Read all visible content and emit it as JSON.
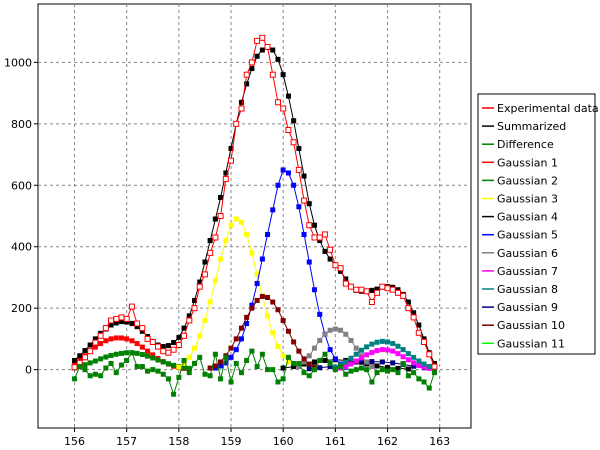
{
  "chart_data": {
    "type": "line",
    "title": "",
    "xlabel": "",
    "ylabel": "",
    "xlim": [
      155.3,
      163.6
    ],
    "ylim": [
      -190,
      1190
    ],
    "xticks": [
      "156",
      "157",
      "158",
      "159",
      "160",
      "161",
      "162",
      "163"
    ],
    "yticks": [
      "0",
      "200",
      "400",
      "600",
      "800",
      "1000"
    ],
    "grid": true,
    "legend_position": "right",
    "series": [
      {
        "name": "Experimental data",
        "color": "#ff0000",
        "marker": "open-square",
        "x": [
          156.0,
          156.1,
          156.2,
          156.3,
          156.4,
          156.5,
          156.6,
          156.7,
          156.8,
          156.9,
          157.0,
          157.1,
          157.2,
          157.3,
          157.4,
          157.5,
          157.6,
          157.7,
          157.8,
          157.9,
          158.0,
          158.1,
          158.2,
          158.3,
          158.4,
          158.5,
          158.6,
          158.7,
          158.8,
          158.9,
          159.0,
          159.1,
          159.2,
          159.3,
          159.4,
          159.5,
          159.6,
          159.7,
          159.8,
          159.9,
          160.0,
          160.1,
          160.2,
          160.3,
          160.4,
          160.5,
          160.6,
          160.7,
          160.8,
          160.9,
          161.0,
          161.1,
          161.2,
          161.3,
          161.4,
          161.5,
          161.6,
          161.7,
          161.8,
          161.9,
          162.0,
          162.1,
          162.2,
          162.3,
          162.4,
          162.5,
          162.6,
          162.7,
          162.8,
          162.9
        ],
        "y": [
          8,
          22,
          40,
          60,
          88,
          110,
          135,
          160,
          165,
          170,
          165,
          205,
          150,
          135,
          100,
          90,
          75,
          60,
          55,
          65,
          80,
          110,
          160,
          200,
          270,
          310,
          380,
          430,
          500,
          620,
          680,
          800,
          850,
          960,
          1000,
          1070,
          1080,
          1050,
          960,
          870,
          850,
          780,
          740,
          650,
          550,
          470,
          430,
          430,
          440,
          390,
          340,
          330,
          280,
          270,
          260,
          260,
          255,
          220,
          250,
          270,
          265,
          260,
          250,
          240,
          200,
          170,
          120,
          90,
          50,
          10
        ]
      },
      {
        "name": "Summarized",
        "color": "#000000",
        "marker": "square",
        "x": [
          156.0,
          156.1,
          156.2,
          156.3,
          156.4,
          156.5,
          156.6,
          156.7,
          156.8,
          156.9,
          157.0,
          157.1,
          157.2,
          157.3,
          157.4,
          157.5,
          157.6,
          157.7,
          157.8,
          157.9,
          158.0,
          158.1,
          158.2,
          158.3,
          158.4,
          158.5,
          158.6,
          158.7,
          158.8,
          158.9,
          159.0,
          159.1,
          159.2,
          159.3,
          159.4,
          159.5,
          159.6,
          159.7,
          159.8,
          159.9,
          160.0,
          160.1,
          160.2,
          160.3,
          160.4,
          160.5,
          160.6,
          160.7,
          160.8,
          160.9,
          161.0,
          161.1,
          161.2,
          161.3,
          161.4,
          161.5,
          161.6,
          161.7,
          161.8,
          161.9,
          162.0,
          162.1,
          162.2,
          162.3,
          162.4,
          162.5,
          162.6,
          162.7,
          162.8,
          162.9
        ],
        "y": [
          30,
          45,
          62,
          80,
          100,
          118,
          132,
          145,
          152,
          156,
          155,
          150,
          140,
          125,
          108,
          92,
          80,
          75,
          78,
          88,
          105,
          135,
          175,
          225,
          285,
          350,
          420,
          490,
          560,
          640,
          720,
          800,
          870,
          930,
          980,
          1020,
          1040,
          1050,
          1040,
          1010,
          960,
          890,
          810,
          720,
          630,
          540,
          470,
          420,
          385,
          360,
          340,
          320,
          295,
          270,
          258,
          255,
          255,
          258,
          262,
          268,
          270,
          268,
          260,
          245,
          220,
          185,
          145,
          100,
          55,
          20
        ]
      },
      {
        "name": "Difference",
        "color": "#008000",
        "marker": "square",
        "x": [
          156.0,
          156.1,
          156.2,
          156.3,
          156.4,
          156.5,
          156.6,
          156.7,
          156.8,
          156.9,
          157.0,
          157.1,
          157.2,
          157.3,
          157.4,
          157.5,
          157.6,
          157.7,
          157.8,
          157.9,
          158.0,
          158.1,
          158.2,
          158.3,
          158.4,
          158.5,
          158.6,
          158.7,
          158.8,
          158.9,
          159.0,
          159.1,
          159.2,
          159.3,
          159.4,
          159.5,
          159.6,
          159.7,
          159.8,
          159.9,
          160.0,
          160.1,
          160.2,
          160.3,
          160.4,
          160.5,
          160.6,
          160.7,
          160.8,
          160.9,
          161.0,
          161.1,
          161.2,
          161.3,
          161.4,
          161.5,
          161.6,
          161.7,
          161.8,
          161.9,
          162.0,
          162.1,
          162.2,
          162.3,
          162.4,
          162.5,
          162.6,
          162.7,
          162.8,
          162.9
        ],
        "y": [
          -30,
          10,
          0,
          -20,
          -15,
          -20,
          5,
          20,
          -10,
          15,
          30,
          55,
          10,
          10,
          -5,
          0,
          -5,
          -15,
          -30,
          -80,
          -25,
          30,
          -10,
          20,
          40,
          -15,
          -20,
          50,
          -30,
          40,
          -40,
          20,
          -10,
          30,
          60,
          10,
          50,
          0,
          0,
          -40,
          -30,
          40,
          20,
          20,
          -10,
          -20,
          0,
          30,
          50,
          20,
          0,
          10,
          -15,
          -5,
          0,
          5,
          0,
          -40,
          -10,
          0,
          -5,
          0,
          -10,
          20,
          -20,
          -10,
          -30,
          -40,
          -60,
          -10
        ]
      },
      {
        "name": "Gaussian 1",
        "color": "#ff0000",
        "marker": "square",
        "x": [
          156.0,
          156.1,
          156.2,
          156.3,
          156.4,
          156.5,
          156.6,
          156.7,
          156.8,
          156.9,
          157.0,
          157.1,
          157.2,
          157.3,
          157.4,
          157.5,
          157.6,
          157.7,
          157.8,
          157.9,
          158.0,
          158.1,
          158.2
        ],
        "y": [
          20,
          32,
          45,
          60,
          73,
          85,
          94,
          100,
          103,
          103,
          100,
          94,
          85,
          73,
          60,
          48,
          36,
          26,
          18,
          11,
          7,
          4,
          2
        ]
      },
      {
        "name": "Gaussian 2",
        "color": "#008000",
        "marker": "square",
        "x": [
          156.0,
          156.1,
          156.2,
          156.3,
          156.4,
          156.5,
          156.6,
          156.7,
          156.8,
          156.9,
          157.0,
          157.1,
          157.2,
          157.3,
          157.4,
          157.5,
          157.6,
          157.7,
          157.8,
          157.9,
          158.0,
          158.1,
          158.2
        ],
        "y": [
          5,
          10,
          16,
          22,
          28,
          35,
          41,
          46,
          50,
          53,
          55,
          55,
          53,
          49,
          44,
          38,
          31,
          25,
          19,
          14,
          10,
          6,
          4
        ]
      },
      {
        "name": "Gaussian 3",
        "color": "#ffff00",
        "marker": "square",
        "x": [
          158.0,
          158.1,
          158.2,
          158.3,
          158.4,
          158.5,
          158.6,
          158.7,
          158.8,
          158.9,
          159.0,
          159.1,
          159.2,
          159.3,
          159.4,
          159.5,
          159.6,
          159.7,
          159.8,
          159.9,
          160.0,
          160.1,
          160.2
        ],
        "y": [
          8,
          20,
          40,
          70,
          110,
          160,
          220,
          290,
          360,
          420,
          470,
          490,
          480,
          440,
          380,
          310,
          240,
          175,
          120,
          75,
          45,
          25,
          12
        ]
      },
      {
        "name": "Gaussian 4",
        "color": "#000000",
        "marker": "square",
        "x": [
          160.0,
          160.2,
          160.4,
          160.6,
          160.8,
          161.0,
          161.2,
          161.4,
          161.6,
          161.8,
          162.0,
          162.2,
          162.4
        ],
        "y": [
          5,
          10,
          18,
          25,
          30,
          32,
          30,
          25,
          18,
          12,
          7,
          4,
          2
        ]
      },
      {
        "name": "Gaussian 5",
        "color": "#0000ff",
        "marker": "square",
        "x": [
          158.7,
          158.8,
          158.9,
          159.0,
          159.1,
          159.2,
          159.3,
          159.4,
          159.5,
          159.6,
          159.7,
          159.8,
          159.9,
          160.0,
          160.1,
          160.2,
          160.3,
          160.4,
          160.5,
          160.6,
          160.7,
          160.8,
          160.9,
          161.0,
          161.1,
          161.2
        ],
        "y": [
          5,
          12,
          22,
          40,
          65,
          100,
          150,
          210,
          280,
          360,
          440,
          520,
          600,
          650,
          640,
          600,
          530,
          440,
          350,
          260,
          180,
          115,
          65,
          35,
          18,
          8
        ]
      },
      {
        "name": "Gaussian 6",
        "color": "#808080",
        "marker": "square",
        "x": [
          160.3,
          160.4,
          160.5,
          160.6,
          160.7,
          160.8,
          160.9,
          161.0,
          161.1,
          161.2,
          161.3,
          161.4,
          161.5,
          161.6,
          161.7
        ],
        "y": [
          10,
          25,
          45,
          70,
          95,
          115,
          128,
          132,
          128,
          115,
          95,
          70,
          45,
          25,
          10
        ]
      },
      {
        "name": "Gaussian 7",
        "color": "#ff00ff",
        "marker": "square",
        "x": [
          161.1,
          161.2,
          161.3,
          161.4,
          161.5,
          161.6,
          161.7,
          161.8,
          161.9,
          162.0,
          162.1,
          162.2,
          162.3,
          162.4,
          162.5,
          162.6,
          162.7,
          162.8,
          162.9
        ],
        "y": [
          5,
          10,
          18,
          28,
          38,
          48,
          56,
          62,
          65,
          64,
          60,
          52,
          42,
          32,
          22,
          14,
          8,
          4,
          2
        ]
      },
      {
        "name": "Gaussian 8",
        "color": "#008080",
        "marker": "square",
        "x": [
          161.0,
          161.1,
          161.2,
          161.3,
          161.4,
          161.5,
          161.6,
          161.7,
          161.8,
          161.9,
          162.0,
          162.1,
          162.2,
          162.3,
          162.4,
          162.5,
          162.6,
          162.7,
          162.8,
          162.9
        ],
        "y": [
          8,
          15,
          25,
          37,
          50,
          63,
          74,
          83,
          89,
          92,
          90,
          85,
          76,
          65,
          52,
          40,
          28,
          18,
          10,
          5
        ]
      },
      {
        "name": "Gaussian 9",
        "color": "#000080",
        "marker": "square",
        "x": [
          160.5,
          160.7,
          160.9,
          161.1,
          161.3,
          161.5,
          161.7,
          161.9,
          162.1,
          162.3,
          162.5,
          162.7
        ],
        "y": [
          3,
          6,
          10,
          15,
          20,
          24,
          26,
          25,
          22,
          17,
          11,
          6
        ]
      },
      {
        "name": "Gaussian 10",
        "color": "#800000",
        "marker": "square",
        "x": [
          158.6,
          158.7,
          158.8,
          158.9,
          159.0,
          159.1,
          159.2,
          159.3,
          159.4,
          159.5,
          159.6,
          159.7,
          159.8,
          159.9,
          160.0,
          160.1,
          160.2,
          160.3,
          160.4,
          160.5,
          160.6
        ],
        "y": [
          5,
          12,
          25,
          45,
          70,
          100,
          135,
          170,
          200,
          225,
          238,
          235,
          220,
          195,
          160,
          125,
          90,
          60,
          35,
          18,
          8
        ]
      },
      {
        "name": "Gaussian 11",
        "color": "#00ff00",
        "marker": "square",
        "x": [
          156.0,
          156.2,
          156.4,
          156.6,
          156.8,
          157.0,
          157.2,
          157.4,
          157.6,
          157.8,
          158.0,
          158.2,
          158.4,
          158.6,
          158.8,
          159.0,
          159.2,
          159.4,
          159.6,
          159.8,
          160.0,
          160.2,
          160.4,
          160.6,
          160.8,
          161.0,
          161.2,
          161.4,
          161.6,
          161.8,
          162.0,
          162.2,
          162.4,
          162.6,
          162.8,
          162.9
        ],
        "y": [
          2,
          2,
          3,
          3,
          3,
          4,
          4,
          4,
          4,
          4,
          4,
          4,
          4,
          4,
          4,
          4,
          4,
          4,
          4,
          4,
          4,
          4,
          4,
          4,
          4,
          4,
          4,
          4,
          4,
          4,
          3,
          3,
          3,
          2,
          2,
          2
        ]
      }
    ]
  }
}
